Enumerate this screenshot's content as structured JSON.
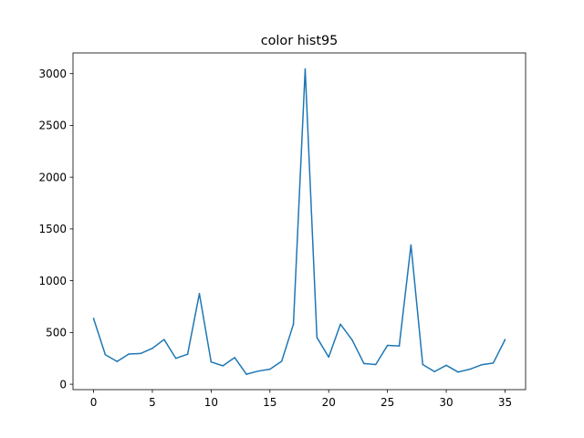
{
  "chart_data": {
    "type": "line",
    "title": "color hist95",
    "xlabel": "",
    "ylabel": "",
    "xlim": [
      -1.75,
      36.75
    ],
    "ylim": [
      -52,
      3200
    ],
    "xticks": [
      0,
      5,
      10,
      15,
      20,
      25,
      30,
      35
    ],
    "yticks": [
      0,
      500,
      1000,
      1500,
      2000,
      2500,
      3000
    ],
    "grid": false,
    "legend": "none",
    "series": [
      {
        "color": "#1f77b4",
        "x": [
          0,
          1,
          2,
          3,
          4,
          5,
          6,
          7,
          8,
          9,
          10,
          11,
          12,
          13,
          14,
          15,
          16,
          17,
          18,
          19,
          20,
          21,
          22,
          23,
          24,
          25,
          26,
          27,
          28,
          29,
          30,
          31,
          32,
          33,
          34,
          35
        ],
        "values": [
          635,
          285,
          220,
          292,
          297,
          347,
          432,
          250,
          290,
          875,
          215,
          178,
          258,
          97,
          127,
          145,
          222,
          580,
          3045,
          452,
          262,
          580,
          427,
          200,
          190,
          375,
          370,
          1345,
          190,
          122,
          183,
          118,
          145,
          188,
          205,
          430
        ]
      }
    ]
  }
}
